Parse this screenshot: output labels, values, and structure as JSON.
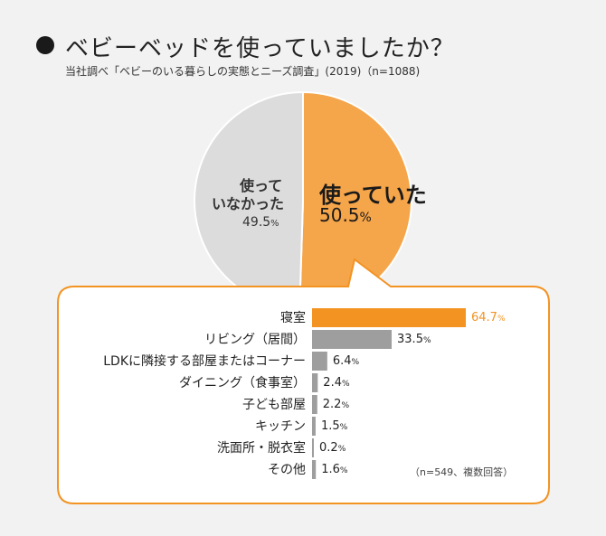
{
  "header": {
    "title": "ベビーベッドを使っていましたか？",
    "subtitle": "当社調べ「ベビーのいる暮らしの実態とニーズ調査」(2019)（n=1088)"
  },
  "colors": {
    "orange": "#f5a54a",
    "orange_dark": "#f39322",
    "gray_slice": "#dcdcdc",
    "gray_bar": "#9e9e9e",
    "border": "#f39322"
  },
  "chart_data": [
    {
      "type": "pie",
      "slices": [
        {
          "label": "使っていた",
          "value": 50.5
        },
        {
          "label": "使っていなかった",
          "value": 49.5
        }
      ],
      "labels": {
        "yes_text": "使っていた",
        "yes_value": "50.5",
        "no_text_line1": "使って",
        "no_text_line2": "いなかった",
        "no_value": "49.5",
        "unit": "%"
      }
    },
    {
      "type": "bar",
      "orientation": "horizontal",
      "categories": [
        "寝室",
        "リビング（居間）",
        "LDKに隣接する部屋またはコーナー",
        "ダイニング（食事室）",
        "子ども部屋",
        "キッチン",
        "洗面所・脱衣室",
        "その他"
      ],
      "values": [
        64.7,
        33.5,
        6.4,
        2.4,
        2.2,
        1.5,
        0.2,
        1.6
      ],
      "value_labels": [
        "64.7",
        "33.5",
        "6.4",
        "2.4",
        "2.2",
        "1.5",
        "0.2",
        "1.6"
      ],
      "unit": "%",
      "highlight_index": 0,
      "note": "（n=549、複数回答）"
    }
  ]
}
